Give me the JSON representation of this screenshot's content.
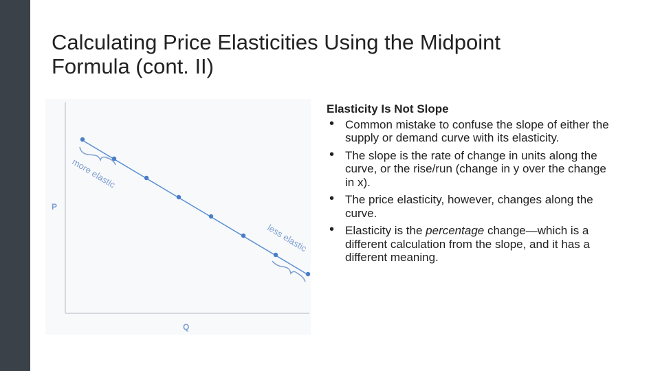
{
  "slide": {
    "title_line1": "Calculating Price Elasticities Using the Midpoint",
    "title_line2": "Formula (cont. II)"
  },
  "figure": {
    "y_axis_label": "P",
    "x_axis_label": "Q",
    "more_label": "more elastic",
    "less_label": "less elastic",
    "colors": {
      "line": "#5b8fd4",
      "point": "#4a7cc7",
      "label": "#7d9fd0",
      "axis": "#c8cdd4"
    }
  },
  "content": {
    "heading": "Elasticity Is Not Slope",
    "bullets": [
      "Common mistake to confuse the slope of either the supply or demand curve with its elasticity.",
      "The slope is the rate of change in units along the curve, or the rise/run (change in y over the change in x).",
      "The price elasticity, however, changes along the curve."
    ],
    "bullet4_before": "Elasticity is the ",
    "bullet4_em": "percentage",
    "bullet4_after": " change—which is a different calculation from the slope, and it has a different meaning."
  }
}
